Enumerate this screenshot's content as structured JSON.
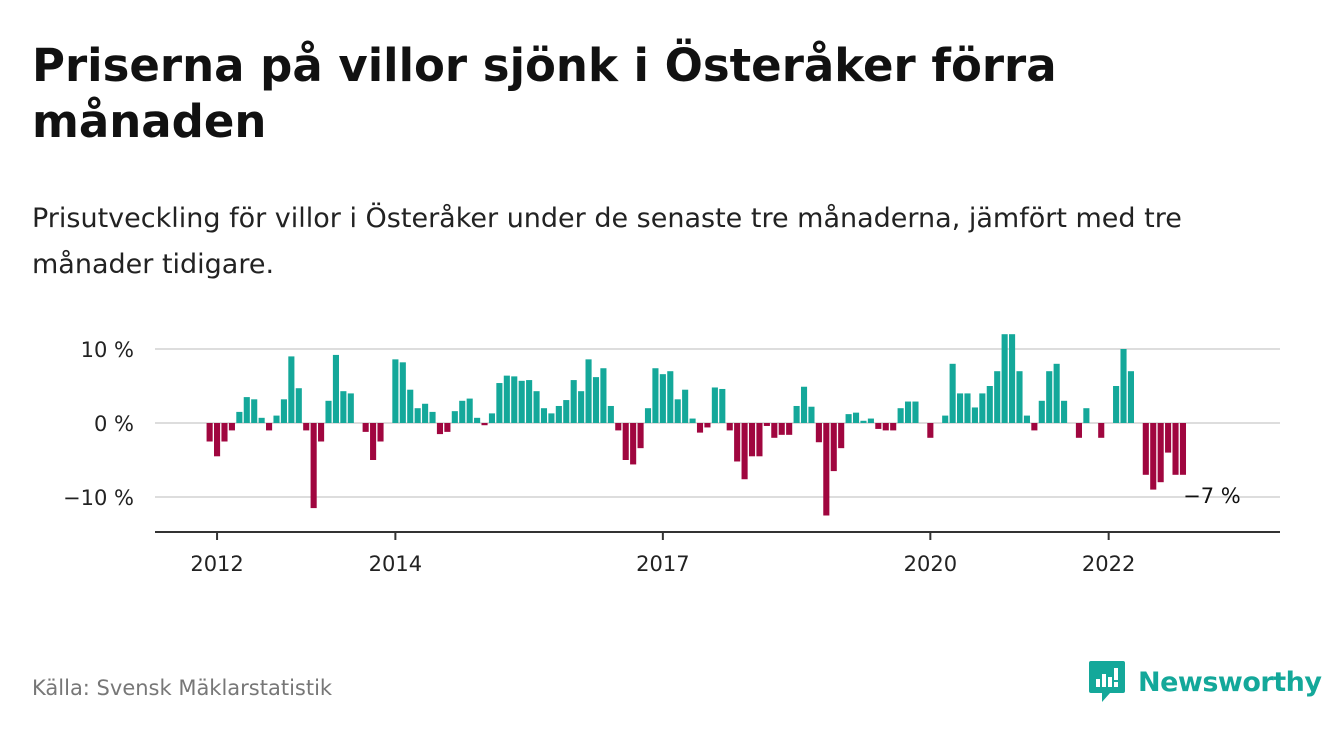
{
  "title": "Priserna på villor sjönk i Österåker förra månaden",
  "subtitle": "Prisutveckling för villor i Österåker under de senaste tre månaderna, jämfört med tre månader tidigare.",
  "source": "Källa: Svensk Mäklarstatistik",
  "brand": {
    "name": "Newsworthy",
    "icon": "newsworthy-logo-icon",
    "color": "#14a89a"
  },
  "colors": {
    "positive": "#14a89a",
    "negative": "#a0063f",
    "grid": "#dddddd",
    "axis": "#333333"
  },
  "chart_data": {
    "type": "bar",
    "ylim": [
      -14.5,
      14.5
    ],
    "y_ticks": [
      {
        "value": 10,
        "label": "10 %"
      },
      {
        "value": 0,
        "label": "0 %"
      },
      {
        "value": -10,
        "label": "−10 %"
      }
    ],
    "x_ticks": [
      {
        "year": 2012,
        "label": "2012"
      },
      {
        "year": 2014,
        "label": "2014"
      },
      {
        "year": 2017,
        "label": "2017"
      },
      {
        "year": 2020,
        "label": "2020"
      },
      {
        "year": 2022,
        "label": "2022"
      }
    ],
    "x_start": "2011-06",
    "values": [
      0,
      0,
      0,
      0,
      0,
      0,
      -2.5,
      -4.5,
      -2.5,
      -1,
      1.5,
      3.5,
      3.2,
      0.7,
      -1,
      1,
      3.2,
      9,
      4.7,
      -1,
      -11.5,
      -2.5,
      3,
      9.2,
      4.3,
      4,
      0,
      -1.2,
      -5,
      -2.5,
      0,
      8.6,
      8.2,
      4.5,
      2,
      2.6,
      1.5,
      -1.5,
      -1.2,
      1.6,
      3,
      3.3,
      0.7,
      -0.3,
      1.3,
      5.4,
      6.4,
      6.3,
      5.7,
      5.8,
      4.3,
      2,
      1.3,
      2.3,
      3.1,
      5.8,
      4.3,
      8.6,
      6.2,
      7.4,
      2.3,
      -1,
      -5,
      -5.6,
      -3.4,
      2,
      7.4,
      6.6,
      7,
      3.2,
      4.5,
      0.6,
      -1.3,
      -0.6,
      4.8,
      4.6,
      -1,
      -5.2,
      -7.6,
      -4.5,
      -4.5,
      -0.4,
      -2,
      -1.6,
      -1.6,
      2.3,
      4.9,
      2.2,
      -2.6,
      -12.5,
      -6.5,
      -3.4,
      1.2,
      1.4,
      0.3,
      0.6,
      -0.8,
      -1,
      -1,
      2,
      2.9,
      2.9,
      0,
      -2,
      0,
      1,
      8,
      4,
      4,
      2.1,
      4,
      5,
      7,
      12,
      12,
      7,
      1,
      -1,
      3,
      7,
      8,
      3,
      0,
      -2,
      2,
      0,
      -2,
      0,
      5,
      10,
      7,
      0,
      -7,
      -9,
      -8,
      -4,
      -7,
      -7
    ],
    "last_value_label": "−7 %"
  }
}
